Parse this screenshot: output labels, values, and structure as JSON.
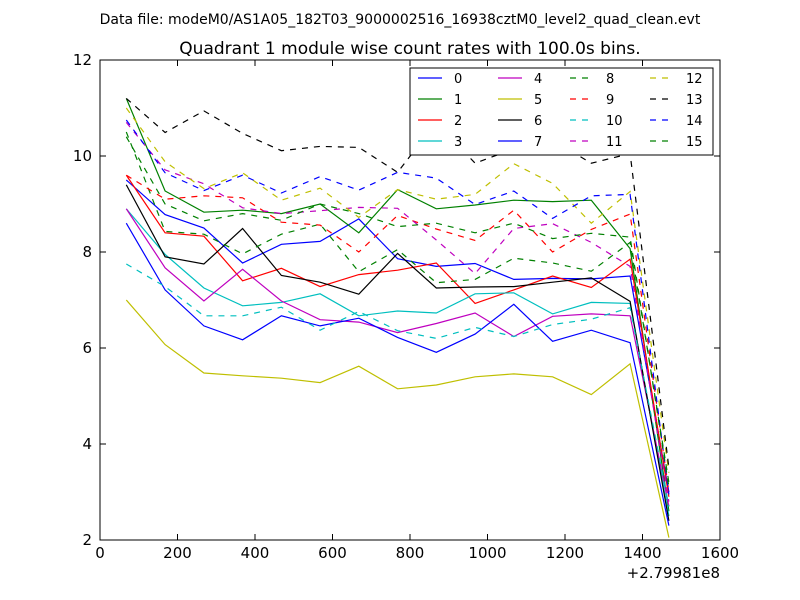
{
  "figure": {
    "suptitle": "Data file: modeM0/AS1A05_182T03_9000002516_16938cztM0_level2_quad_clean.evt",
    "x_offset_label": "+2.79981e8"
  },
  "chart_data": {
    "type": "line",
    "title": "Quadrant 1 module wise count rates with 100.0s bins.",
    "xlabel": "",
    "ylabel": "",
    "xlim": [
      0,
      1600
    ],
    "ylim": [
      2,
      12
    ],
    "xticks": [
      0,
      200,
      400,
      600,
      800,
      1000,
      1200,
      1400,
      1600
    ],
    "xtick_labels": [
      "0",
      "200",
      "400",
      "600",
      "800",
      "1000",
      "1200",
      "1400",
      "1600"
    ],
    "yticks": [
      2,
      4,
      6,
      8,
      10,
      12
    ],
    "ytick_labels": [
      "2",
      "4",
      "6",
      "8",
      "10",
      "12"
    ],
    "grid": false,
    "legend_location": "top-right",
    "legend_columns": 4,
    "x": [
      68,
      168,
      268,
      368,
      468,
      568,
      668,
      768,
      868,
      968,
      1068,
      1168,
      1268,
      1368,
      1468
    ],
    "series": [
      {
        "name": "0",
        "color": "#0000ff",
        "style": "solid",
        "values": [
          9.5,
          8.78,
          8.5,
          7.77,
          8.16,
          8.22,
          8.69,
          7.86,
          7.7,
          7.76,
          7.43,
          7.45,
          7.44,
          7.5,
          3.0
        ]
      },
      {
        "name": "1",
        "color": "#008000",
        "style": "solid",
        "values": [
          11.2,
          9.27,
          8.83,
          8.87,
          8.8,
          9.0,
          8.4,
          9.3,
          8.9,
          8.98,
          9.08,
          9.05,
          9.08,
          8.07,
          2.6
        ]
      },
      {
        "name": "2",
        "color": "#ff0000",
        "style": "solid",
        "values": [
          9.6,
          8.4,
          8.33,
          7.4,
          7.66,
          7.28,
          7.53,
          7.62,
          7.77,
          6.93,
          7.21,
          7.5,
          7.26,
          7.85,
          2.9
        ]
      },
      {
        "name": "3",
        "color": "#00bfbf",
        "style": "solid",
        "values": [
          8.9,
          7.95,
          7.25,
          6.88,
          6.95,
          7.13,
          6.67,
          6.77,
          6.73,
          7.13,
          7.15,
          6.71,
          6.95,
          6.93,
          2.5
        ]
      },
      {
        "name": "4",
        "color": "#bf00bf",
        "style": "solid",
        "values": [
          8.9,
          7.67,
          6.98,
          7.64,
          6.98,
          6.59,
          6.54,
          6.32,
          6.51,
          6.73,
          6.24,
          6.66,
          6.71,
          6.67,
          2.7
        ]
      },
      {
        "name": "5",
        "color": "#bfbf00",
        "style": "solid",
        "values": [
          7.0,
          6.07,
          5.48,
          5.42,
          5.37,
          5.28,
          5.62,
          5.15,
          5.23,
          5.4,
          5.46,
          5.4,
          5.03,
          5.67,
          2.05
        ]
      },
      {
        "name": "6",
        "color": "#000000",
        "style": "solid",
        "values": [
          9.4,
          7.9,
          7.75,
          8.49,
          7.51,
          7.37,
          7.12,
          7.97,
          7.25,
          7.27,
          7.28,
          7.37,
          7.46,
          6.97,
          2.4
        ]
      },
      {
        "name": "7",
        "color": "#0000ff",
        "style": "solid",
        "values": [
          8.6,
          7.21,
          6.46,
          6.17,
          6.67,
          6.46,
          6.62,
          6.22,
          5.91,
          6.29,
          6.91,
          6.14,
          6.37,
          6.11,
          2.3
        ]
      },
      {
        "name": "8",
        "color": "#008000",
        "style": "dashed",
        "values": [
          10.5,
          8.43,
          8.37,
          7.96,
          8.37,
          8.58,
          7.59,
          8.05,
          7.36,
          7.43,
          7.87,
          7.77,
          7.6,
          8.2,
          3.2
        ]
      },
      {
        "name": "9",
        "color": "#ff0000",
        "style": "dashed",
        "values": [
          9.6,
          9.1,
          9.17,
          9.13,
          8.62,
          8.56,
          8.0,
          8.76,
          8.48,
          8.24,
          8.87,
          8.0,
          8.47,
          8.79,
          3.0
        ]
      },
      {
        "name": "10",
        "color": "#00bfbf",
        "style": "dashed",
        "values": [
          7.75,
          7.28,
          6.67,
          6.67,
          6.85,
          6.37,
          6.76,
          6.36,
          6.2,
          6.43,
          6.24,
          6.49,
          6.6,
          6.84,
          2.7
        ]
      },
      {
        "name": "11",
        "color": "#bf00bf",
        "style": "dashed",
        "values": [
          10.7,
          9.71,
          9.42,
          8.92,
          8.8,
          8.86,
          8.93,
          8.91,
          8.25,
          7.55,
          8.49,
          8.59,
          8.2,
          7.7,
          2.8
        ]
      },
      {
        "name": "12",
        "color": "#bfbf00",
        "style": "dashed",
        "values": [
          11.0,
          9.88,
          9.32,
          9.65,
          9.08,
          9.33,
          8.72,
          9.3,
          9.1,
          9.2,
          9.84,
          9.43,
          8.6,
          9.26,
          3.4
        ]
      },
      {
        "name": "13",
        "color": "#000000",
        "style": "dashed",
        "values": [
          11.2,
          10.49,
          10.94,
          10.47,
          10.11,
          10.2,
          10.18,
          9.66,
          10.7,
          9.85,
          10.15,
          10.33,
          9.85,
          10.05,
          3.5
        ]
      },
      {
        "name": "14",
        "color": "#0000ff",
        "style": "dashed",
        "values": [
          10.75,
          9.65,
          9.28,
          9.6,
          9.23,
          9.57,
          9.29,
          9.66,
          9.54,
          8.99,
          9.27,
          8.7,
          9.17,
          9.2,
          2.95
        ]
      },
      {
        "name": "15",
        "color": "#008000",
        "style": "dashed",
        "values": [
          10.4,
          9.0,
          8.65,
          8.8,
          8.66,
          9.0,
          8.8,
          8.53,
          8.6,
          8.4,
          8.6,
          8.28,
          8.39,
          8.31,
          3.1
        ]
      }
    ]
  }
}
